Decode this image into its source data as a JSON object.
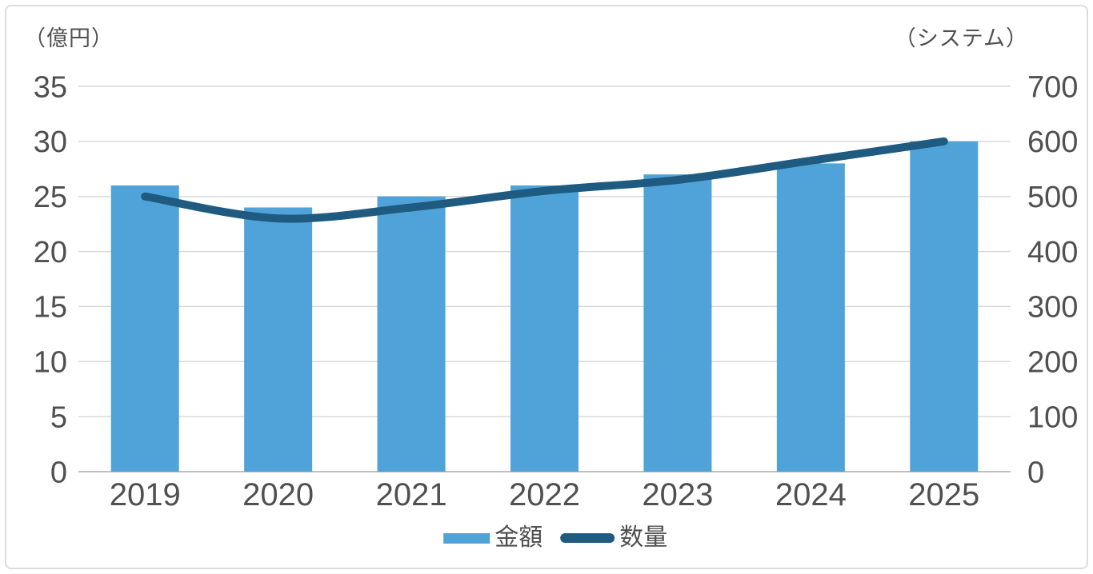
{
  "chart_data": {
    "type": "combo-bar-line",
    "title": "",
    "categories": [
      "2019",
      "2020",
      "2021",
      "2022",
      "2023",
      "2024",
      "2025"
    ],
    "series": [
      {
        "name": "金額",
        "type": "bar",
        "axis": "left",
        "color": "#4FA3D8",
        "values": [
          26,
          24,
          25,
          26,
          27,
          28,
          30
        ]
      },
      {
        "name": "数量",
        "type": "line",
        "axis": "right",
        "color": "#1F5B80",
        "values": [
          500,
          460,
          480,
          510,
          530,
          565,
          600
        ]
      }
    ],
    "left_axis": {
      "title": "（億円）",
      "min": 0,
      "max": 35,
      "step": 5,
      "ticks": [
        0,
        5,
        10,
        15,
        20,
        25,
        30,
        35
      ]
    },
    "right_axis": {
      "title": "（システム）",
      "min": 0,
      "max": 700,
      "step": 100,
      "ticks": [
        0,
        100,
        200,
        300,
        400,
        500,
        600,
        700
      ]
    },
    "legend": {
      "position": "bottom",
      "entries": [
        "金額",
        "数量"
      ]
    },
    "grid": true,
    "styles": {
      "grid_color": "#d9d9d9",
      "baseline_color": "#bfbfbf",
      "text_color": "#505050",
      "border_color": "#dcdcdc",
      "background": "#ffffff",
      "bar_color": "#4FA3D8",
      "line_color": "#1F5B80"
    }
  }
}
